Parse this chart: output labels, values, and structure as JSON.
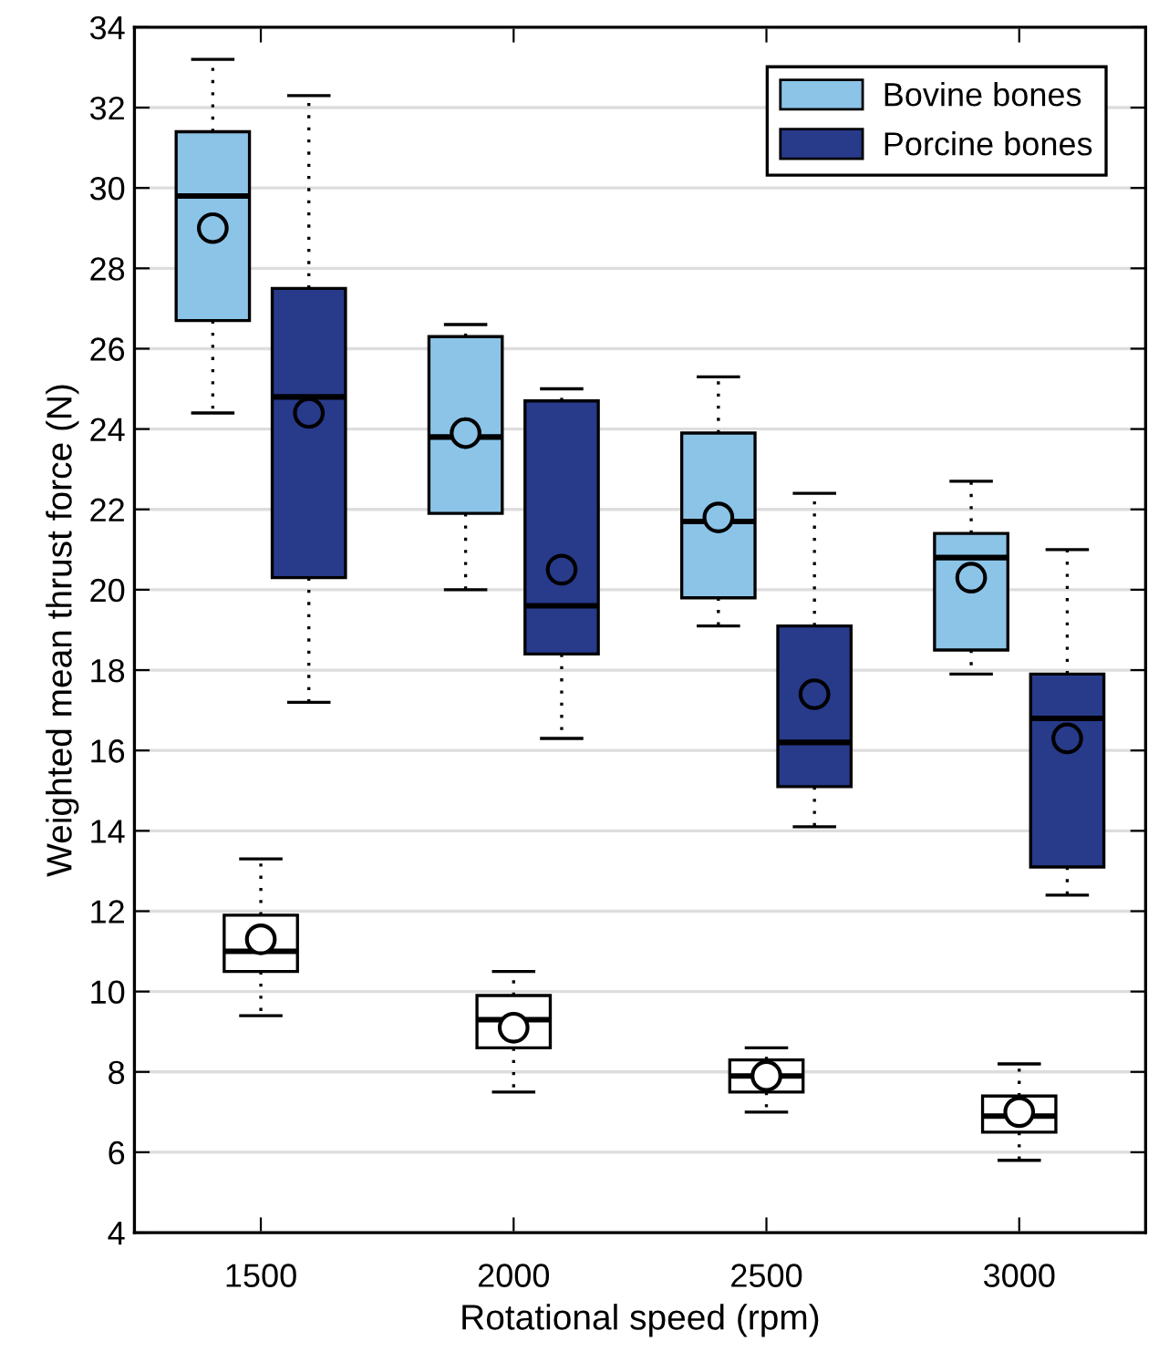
{
  "chart_data": {
    "type": "box",
    "xlabel": "Rotational speed (rpm)",
    "ylabel": "Weighted mean thrust force (N)",
    "categories": [
      "1500",
      "2000",
      "2500",
      "3000"
    ],
    "ylim": [
      4,
      34
    ],
    "yticks": [
      4,
      6,
      8,
      10,
      12,
      14,
      16,
      18,
      20,
      22,
      24,
      26,
      28,
      30,
      32,
      34
    ],
    "grid": "y",
    "legend": "top right",
    "series": [
      {
        "name": "Bovine bones",
        "color": "#8cc4e8",
        "boxes": [
          {
            "low": 24.4,
            "q1": 26.7,
            "median": 29.8,
            "q3": 31.4,
            "high": 33.2,
            "mean": 29.0
          },
          {
            "low": 20.0,
            "q1": 21.9,
            "median": 23.8,
            "q3": 26.3,
            "high": 26.6,
            "mean": 23.9
          },
          {
            "low": 19.1,
            "q1": 19.8,
            "median": 21.7,
            "q3": 23.9,
            "high": 25.3,
            "mean": 21.8
          },
          {
            "low": 17.9,
            "q1": 18.5,
            "median": 20.8,
            "q3": 21.4,
            "high": 22.7,
            "mean": 20.3
          }
        ]
      },
      {
        "name": "Porcine bones",
        "color": "#283a8a",
        "boxes": [
          {
            "low": 17.2,
            "q1": 20.3,
            "median": 24.8,
            "q3": 27.5,
            "high": 32.3,
            "mean": 24.4
          },
          {
            "low": 16.3,
            "q1": 18.4,
            "median": 19.6,
            "q3": 24.7,
            "high": 25.0,
            "mean": 20.5
          },
          {
            "low": 14.1,
            "q1": 15.1,
            "median": 16.2,
            "q3": 19.1,
            "high": 22.4,
            "mean": 17.4
          },
          {
            "low": 12.4,
            "q1": 13.1,
            "median": 16.8,
            "q3": 17.9,
            "high": 21.0,
            "mean": 16.3
          }
        ]
      },
      {
        "color": "#ffffff",
        "boxes": [
          {
            "low": 9.4,
            "q1": 10.5,
            "median": 11.0,
            "q3": 11.9,
            "high": 13.3,
            "mean": 11.3
          },
          {
            "low": 7.5,
            "q1": 8.6,
            "median": 9.3,
            "q3": 9.9,
            "high": 10.5,
            "mean": 9.1
          },
          {
            "low": 7.0,
            "q1": 7.5,
            "median": 7.9,
            "q3": 8.3,
            "high": 8.6,
            "mean": 7.9
          },
          {
            "low": 5.8,
            "q1": 6.5,
            "median": 6.9,
            "q3": 7.4,
            "high": 8.2,
            "mean": 7.0
          }
        ]
      }
    ]
  }
}
